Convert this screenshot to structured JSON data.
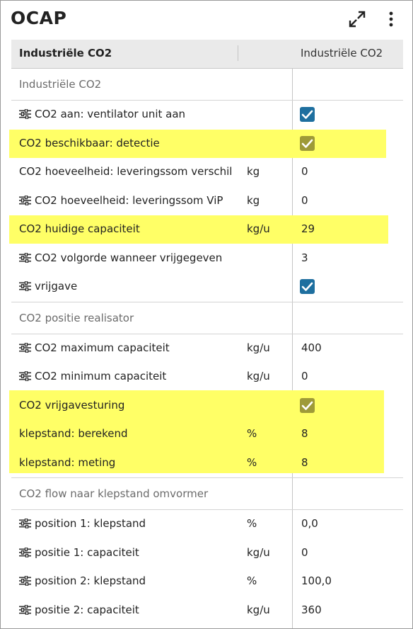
{
  "app": {
    "title": "OCAP"
  },
  "table": {
    "header": {
      "name_col": "Industriële CO2",
      "value_col": "Industriële CO2"
    }
  },
  "groups": [
    {
      "title": "Industriële CO2"
    },
    {
      "title": "CO2 positie realisator"
    },
    {
      "title": "CO2 flow naar klepstand omvormer"
    }
  ],
  "rows": [
    {
      "label": "CO2 aan: ventilator unit aan",
      "unit": "",
      "value": "",
      "checked": true,
      "icon": "tune-icon"
    },
    {
      "label": "CO2 beschikbaar: detectie",
      "unit": "",
      "value": "",
      "checked": true,
      "highlighted": true
    },
    {
      "label": "CO2 hoeveelheid: leveringssom verschil",
      "unit": "kg",
      "value": "0"
    },
    {
      "label": "CO2 hoeveelheid: leveringssom ViP",
      "unit": "kg",
      "value": "0",
      "icon": "tune-icon"
    },
    {
      "label": "CO2 huidige capaciteit",
      "unit": "kg/u",
      "value": "29",
      "highlighted": true
    },
    {
      "label": "CO2 volgorde wanneer vrijgegeven",
      "unit": "",
      "value": "3",
      "icon": "tune-icon"
    },
    {
      "label": "vrijgave",
      "unit": "",
      "value": "",
      "checked": true,
      "icon": "tune-icon"
    },
    {
      "label": "CO2 maximum capaciteit",
      "unit": "kg/u",
      "value": "400",
      "icon": "tune-icon"
    },
    {
      "label": "CO2 minimum capaciteit",
      "unit": "kg/u",
      "value": "0",
      "icon": "tune-icon"
    },
    {
      "label": "CO2 vrijgavesturing",
      "unit": "",
      "value": "",
      "checked": true,
      "highlighted": true
    },
    {
      "label": "klepstand: berekend",
      "unit": "%",
      "value": "8",
      "highlighted": true
    },
    {
      "label": "klepstand: meting",
      "unit": "%",
      "value": "8",
      "highlighted": true
    },
    {
      "label": "position 1: klepstand",
      "unit": "%",
      "value": "0,0",
      "icon": "tune-icon"
    },
    {
      "label": "positie 1: capaciteit",
      "unit": "kg/u",
      "value": "0",
      "icon": "tune-icon"
    },
    {
      "label": "position 2: klepstand",
      "unit": "%",
      "value": "100,0",
      "icon": "tune-icon"
    },
    {
      "label": "positie 2: capaciteit",
      "unit": "kg/u",
      "value": "360",
      "icon": "tune-icon"
    }
  ],
  "colors": {
    "highlight": "#ffff66",
    "checkbox": "#1e6f9f",
    "checkbox_readonly": "#9e9a38"
  }
}
